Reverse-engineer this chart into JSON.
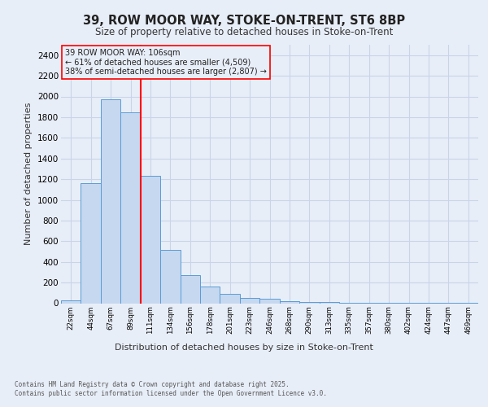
{
  "title1": "39, ROW MOOR WAY, STOKE-ON-TRENT, ST6 8BP",
  "title2": "Size of property relative to detached houses in Stoke-on-Trent",
  "xlabel": "Distribution of detached houses by size in Stoke-on-Trent",
  "ylabel": "Number of detached properties",
  "categories": [
    "22sqm",
    "44sqm",
    "67sqm",
    "89sqm",
    "111sqm",
    "134sqm",
    "156sqm",
    "178sqm",
    "201sqm",
    "223sqm",
    "246sqm",
    "268sqm",
    "290sqm",
    "313sqm",
    "335sqm",
    "357sqm",
    "380sqm",
    "402sqm",
    "424sqm",
    "447sqm",
    "469sqm"
  ],
  "values": [
    25,
    1160,
    1970,
    1850,
    1230,
    515,
    275,
    160,
    90,
    50,
    40,
    20,
    15,
    8,
    5,
    5,
    3,
    2,
    2,
    2,
    2
  ],
  "bar_color": "#c5d8f0",
  "bar_edge_color": "#5b9bd5",
  "bg_color": "#e8eef8",
  "grid_color": "#c8d4e8",
  "vline_color": "red",
  "vline_position": 3.5,
  "annotation_text": "39 ROW MOOR WAY: 106sqm\n← 61% of detached houses are smaller (4,509)\n38% of semi-detached houses are larger (2,807) →",
  "footer1": "Contains HM Land Registry data © Crown copyright and database right 2025.",
  "footer2": "Contains public sector information licensed under the Open Government Licence v3.0.",
  "ylim": [
    0,
    2500
  ],
  "yticks": [
    0,
    200,
    400,
    600,
    800,
    1000,
    1200,
    1400,
    1600,
    1800,
    2000,
    2200,
    2400
  ]
}
